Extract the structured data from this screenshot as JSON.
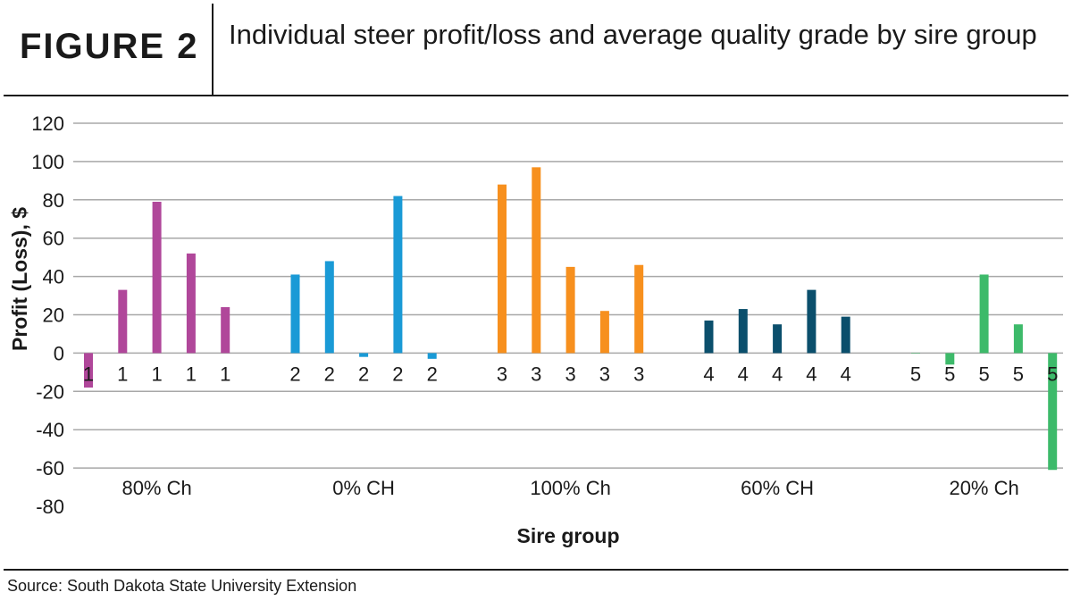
{
  "figure_label": "FIGURE 2",
  "title": "Individual steer profit/loss and average quality grade by sire group",
  "source": "Source: South Dakota State University Extension",
  "colors": {
    "1": "#b0479a",
    "2": "#1a9ad6",
    "3": "#f7901e",
    "4": "#0b4f6c",
    "5": "#3dba6a",
    "grid": "#a8a8a8",
    "text": "#1a1a1a"
  },
  "chart_data": {
    "type": "bar",
    "ylabel": "Profit (Loss), $",
    "xlabel": "Sire group",
    "ylim": [
      -80,
      120
    ],
    "yticks": [
      120,
      100,
      80,
      60,
      40,
      20,
      0,
      -20,
      -40,
      -60,
      -80
    ],
    "grid": true,
    "groups": [
      {
        "name": "80% Ch",
        "code": "1",
        "values": [
          -18,
          33,
          79,
          52,
          24
        ]
      },
      {
        "name": "0% CH",
        "code": "2",
        "values": [
          41,
          48,
          -2,
          82,
          -3
        ]
      },
      {
        "name": "100% Ch",
        "code": "3",
        "values": [
          88,
          97,
          45,
          22,
          46
        ]
      },
      {
        "name": "60% CH",
        "code": "4",
        "values": [
          17,
          23,
          15,
          33,
          19
        ]
      },
      {
        "name": "20% Ch",
        "code": "5",
        "values": [
          0,
          -6,
          41,
          15,
          -61
        ]
      }
    ]
  }
}
